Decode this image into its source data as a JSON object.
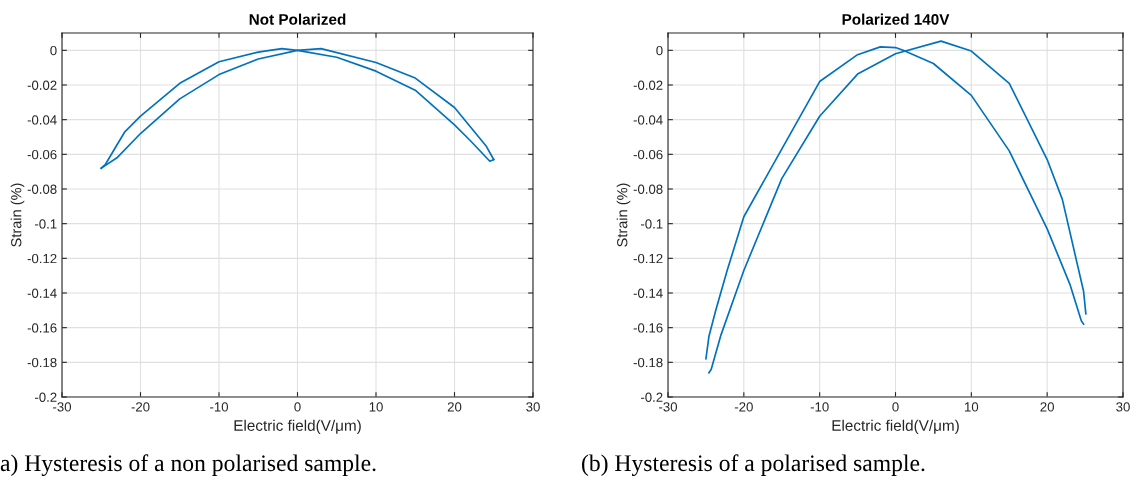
{
  "chart_data": [
    {
      "type": "line",
      "title": "Not Polarized",
      "xlabel": "Electric field(V/μm)",
      "ylabel": "Strain (%)",
      "xlim": [
        -30,
        30
      ],
      "ylim": [
        -0.2,
        0.01
      ],
      "xticks": [
        -30,
        -20,
        -10,
        0,
        10,
        20,
        30
      ],
      "yticks": [
        -0.2,
        -0.18,
        -0.16,
        -0.14,
        -0.12,
        -0.1,
        -0.08,
        -0.06,
        -0.04,
        -0.02,
        0
      ],
      "grid": true,
      "annotations": [
        "a) Hysteresis of a non polarised sample."
      ],
      "series": [
        {
          "color": "#0072bd",
          "x": [
            -25,
            -24.5,
            -22,
            -20,
            -15,
            -10,
            -5,
            -2,
            0,
            5,
            10,
            15,
            20,
            22,
            24.5,
            25
          ],
          "values": [
            -0.068,
            -0.066,
            -0.047,
            -0.038,
            -0.019,
            -0.0066,
            -0.001,
            0.001,
            0,
            -0.004,
            -0.012,
            -0.023,
            -0.043,
            -0.052,
            -0.064,
            -0.063
          ]
        },
        {
          "color": "#0072bd",
          "x": [
            -25,
            -23,
            -20,
            -15,
            -10,
            -5,
            0,
            3,
            10,
            15,
            20,
            24,
            25
          ],
          "values": [
            -0.068,
            -0.062,
            -0.048,
            -0.028,
            -0.014,
            -0.005,
            0,
            0.001,
            -0.007,
            -0.016,
            -0.033,
            -0.055,
            -0.063
          ]
        }
      ]
    },
    {
      "type": "line",
      "title": "Polarized 140V",
      "xlabel": "Electric field(V/μm)",
      "ylabel": "Strain (%)",
      "xlim": [
        -30,
        30
      ],
      "ylim": [
        -0.2,
        0.01
      ],
      "xticks": [
        -30,
        -20,
        -10,
        0,
        10,
        20,
        30
      ],
      "yticks": [
        -0.2,
        -0.18,
        -0.16,
        -0.14,
        -0.12,
        -0.1,
        -0.08,
        -0.06,
        -0.04,
        -0.02,
        0
      ],
      "grid": true,
      "annotations": [
        "(b) Hysteresis of a polarised sample."
      ],
      "series": [
        {
          "color": "#0072bd",
          "x": [
            -25.0,
            -24.6,
            -23.7,
            -22.2,
            -20,
            -15,
            -10,
            -5,
            -2,
            0,
            1,
            5,
            10,
            15,
            20,
            23,
            24.5,
            24.8
          ],
          "values": [
            -0.178,
            -0.165,
            -0.15,
            -0.127,
            -0.096,
            -0.057,
            -0.018,
            -0.0025,
            0.002,
            0.0016,
            0,
            -0.0076,
            -0.026,
            -0.058,
            -0.103,
            -0.135,
            -0.156,
            -0.158
          ]
        },
        {
          "color": "#0072bd",
          "x": [
            -24.6,
            -24.3,
            -23,
            -20,
            -15,
            -10,
            -5,
            0,
            6,
            10,
            15,
            20,
            22,
            24.8,
            25.1
          ],
          "values": [
            -0.186,
            -0.184,
            -0.164,
            -0.127,
            -0.074,
            -0.038,
            -0.0137,
            -0.002,
            0.0053,
            -0.0004,
            -0.019,
            -0.063,
            -0.086,
            -0.139,
            -0.152
          ]
        }
      ]
    }
  ]
}
